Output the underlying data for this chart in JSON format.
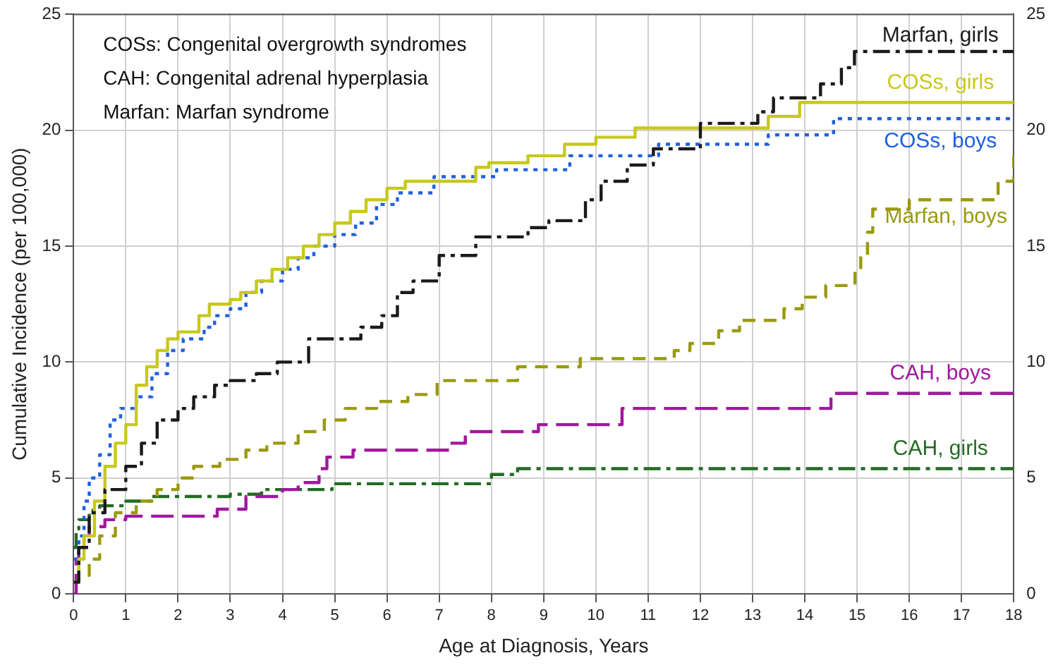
{
  "chart_data": {
    "type": "step",
    "xlabel": "Age at Diagnosis, Years",
    "ylabel": "Cumulative Incidence (per 100,000)",
    "annotations": [
      "COSs: Congenital overgrowth syndromes",
      "CAH: Congenital adrenal hyperplasia",
      "Marfan: Marfan syndrome"
    ],
    "xlim": [
      0,
      18
    ],
    "xticks": [
      0,
      1,
      2,
      3,
      4,
      5,
      6,
      7,
      8,
      9,
      10,
      11,
      12,
      13,
      14,
      15,
      16,
      17,
      18
    ],
    "ylim": [
      0,
      25
    ],
    "yticks": [
      0,
      5,
      10,
      15,
      20,
      25
    ],
    "y2lim": [
      0,
      25
    ],
    "y2ticks": [
      0,
      5,
      10,
      15,
      20,
      25
    ],
    "grid": true,
    "legend": false,
    "series": [
      {
        "name": "Marfan, girls",
        "color": "#1a1a1a",
        "line_style": "dashdot",
        "x": [
          0,
          0.1,
          0.3,
          0.6,
          1,
          1.3,
          1.6,
          2,
          2.3,
          2.7,
          3,
          3.5,
          3.9,
          4.5,
          5.5,
          5.9,
          6.2,
          6.5,
          7,
          7.7,
          8.7,
          9.1,
          9.8,
          10.1,
          10.6,
          11.1,
          12,
          13.1,
          13.4,
          14.3,
          14.7,
          14.95,
          18
        ],
        "values": [
          0.5,
          2,
          3.5,
          4.5,
          5.5,
          6.5,
          7.5,
          8,
          8.5,
          9,
          9.2,
          9.5,
          10,
          11,
          11.5,
          12,
          13,
          13.5,
          14.6,
          15.4,
          15.8,
          16.1,
          17,
          17.8,
          18.5,
          19.2,
          20.3,
          20.8,
          21.4,
          22,
          22.7,
          23.4,
          23.4
        ]
      },
      {
        "name": "COSs, girls",
        "color": "#c8c81e",
        "line_style": "solid",
        "x": [
          0,
          0.1,
          0.2,
          0.4,
          0.6,
          0.8,
          1,
          1.2,
          1.4,
          1.6,
          1.8,
          2,
          2.4,
          2.6,
          3,
          3.2,
          3.5,
          3.8,
          4.1,
          4.4,
          4.7,
          5,
          5.3,
          5.6,
          6,
          6.35,
          7.7,
          7.95,
          8.7,
          9.4,
          10,
          10.75,
          13.3,
          13.9,
          18
        ],
        "values": [
          0.5,
          1.5,
          2.5,
          4,
          5.5,
          6.5,
          7.3,
          9,
          9.8,
          10.5,
          11,
          11.3,
          12,
          12.5,
          12.7,
          13,
          13.5,
          14,
          14.5,
          15,
          15.5,
          16,
          16.5,
          17,
          17.5,
          17.8,
          18.4,
          18.6,
          18.9,
          19.4,
          19.7,
          20.1,
          20.6,
          21.2,
          21.2
        ]
      },
      {
        "name": "COSs, boys",
        "color": "#2060e0",
        "line_style": "dotted",
        "x": [
          0,
          0.1,
          0.2,
          0.3,
          0.5,
          0.7,
          0.9,
          1.2,
          1.5,
          1.8,
          2.1,
          2.5,
          2.7,
          3,
          3.3,
          3.6,
          4,
          4.3,
          4.6,
          5,
          5.4,
          5.8,
          6.2,
          6.9,
          8.1,
          9.5,
          11.2,
          13.3,
          14.55,
          18
        ],
        "values": [
          1.5,
          2.5,
          4,
          5,
          6,
          7.5,
          8,
          8.5,
          9.5,
          10.5,
          11,
          11.5,
          12,
          12.3,
          13,
          13.5,
          14,
          14.5,
          15,
          15.5,
          16,
          16.8,
          17.3,
          18,
          18.3,
          18.9,
          19.4,
          19.8,
          20.5,
          20.5
        ]
      },
      {
        "name": "Marfan, boys",
        "color": "#9a9a10",
        "line_style": "dashed",
        "x": [
          0,
          0.1,
          0.3,
          0.5,
          0.8,
          1.2,
          1.6,
          2,
          2.3,
          2.8,
          3.3,
          3.7,
          4.3,
          4.8,
          5.2,
          5.8,
          6.4,
          6.96,
          8.5,
          9.7,
          11.5,
          11.8,
          12.35,
          12.75,
          13.6,
          13.95,
          14.4,
          14.96,
          15.07,
          15.2,
          15.3,
          16,
          17.7,
          18
        ],
        "values": [
          0.5,
          0.8,
          1.5,
          2.5,
          3.5,
          4,
          4.5,
          5,
          5.5,
          5.8,
          6.2,
          6.5,
          7,
          7.5,
          8,
          8.3,
          8.6,
          9.2,
          9.8,
          10.15,
          10.5,
          10.8,
          11.35,
          11.8,
          12.3,
          12.8,
          13.3,
          14,
          14.6,
          15.6,
          16.6,
          17,
          17.8,
          19.3
        ]
      },
      {
        "name": "CAH, boys",
        "color": "#a0189e",
        "line_style": "longdash",
        "x": [
          0,
          0.05,
          0.1,
          0.2,
          0.3,
          0.6,
          1,
          2.75,
          3.3,
          4,
          4.3,
          4.7,
          4.85,
          5.35,
          7.2,
          7.5,
          8.9,
          10.5,
          14.5,
          18
        ],
        "values": [
          0,
          1.5,
          2,
          2.5,
          2.9,
          3.2,
          3.35,
          3.65,
          4.2,
          4.5,
          4.8,
          5.4,
          5.9,
          6.2,
          6.5,
          7,
          7.3,
          8,
          8.65,
          8.65
        ]
      },
      {
        "name": "CAH, girls",
        "color": "#236b23",
        "line_style": "dashdot",
        "x": [
          0,
          0.05,
          0.1,
          0.3,
          0.5,
          1,
          1.5,
          3,
          3.6,
          4.95,
          8,
          8.5,
          18
        ],
        "values": [
          2,
          2.8,
          3.2,
          3.6,
          3.8,
          4,
          4.2,
          4.3,
          4.5,
          4.75,
          5.15,
          5.4,
          5.4
        ]
      }
    ]
  }
}
